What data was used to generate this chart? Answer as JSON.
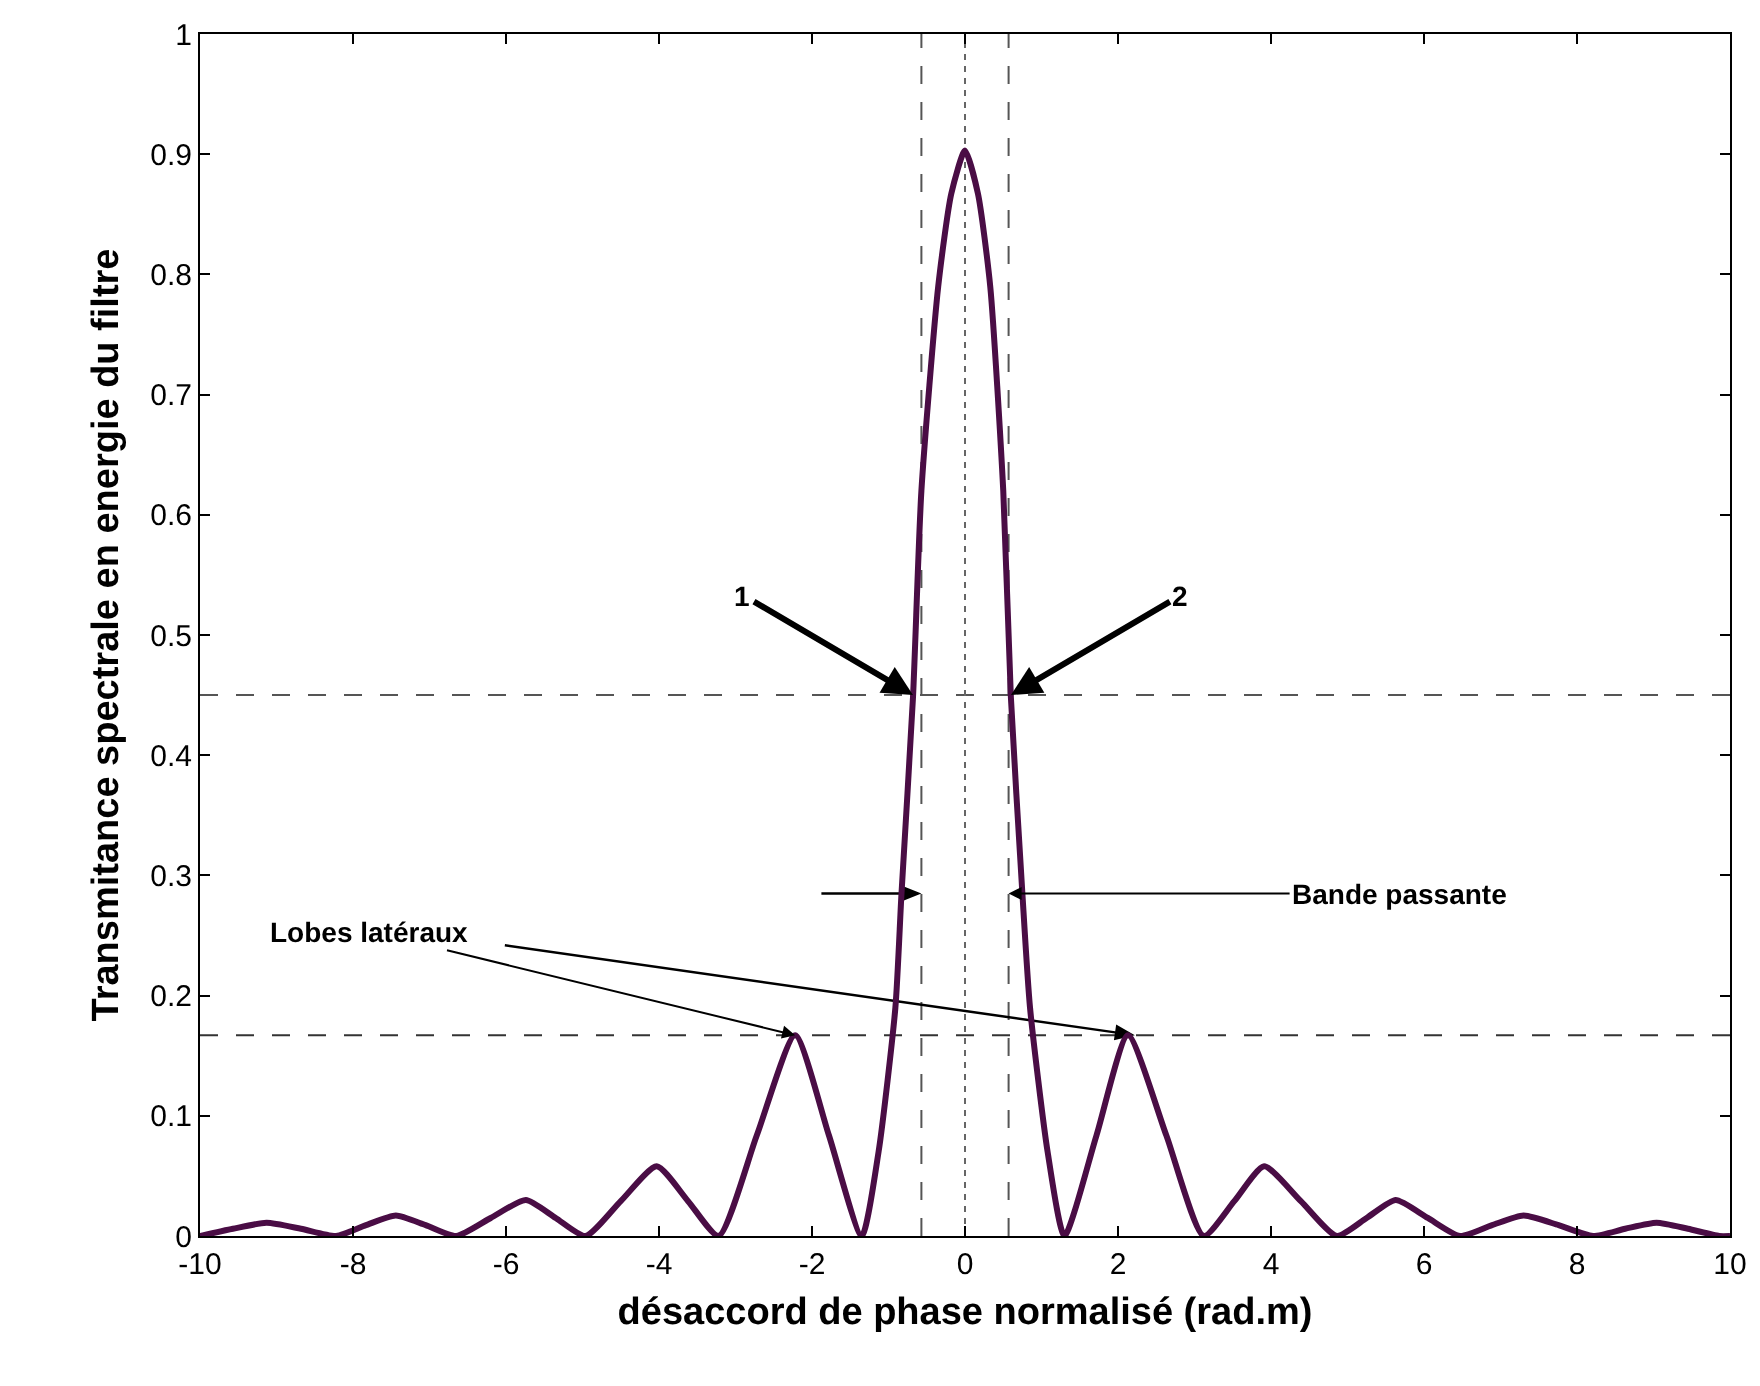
{
  "chart_data": {
    "type": "line",
    "xlabel": "désaccord de phase normalisé (rad.m)",
    "ylabel": "Transmitance spectrale en energie du filtre",
    "x": [
      -10,
      -9.57,
      -9.13,
      -8.68,
      -8.22,
      -7.83,
      -7.44,
      -7.05,
      -6.65,
      -6.2,
      -5.74,
      -5.35,
      -4.96,
      -4.5,
      -4.03,
      -3.62,
      -3.22,
      -2.72,
      -2.22,
      -1.78,
      -1.35,
      -1.13,
      -0.91,
      -0.83,
      -0.68,
      -0.57,
      -0.35,
      -0.18,
      0,
      0.17,
      0.33,
      0.5,
      0.6,
      0.75,
      0.85,
      1.08,
      1.3,
      1.72,
      2.13,
      2.63,
      3.12,
      3.52,
      3.91,
      4.39,
      4.86,
      5.25,
      5.63,
      6.05,
      6.47,
      6.89,
      7.3,
      7.76,
      8.21,
      8.63,
      9.04,
      9.45,
      9.86,
      10
    ],
    "series": [
      {
        "color": "#4a0d45",
        "values": [
          0,
          0.006,
          0.011,
          0.006,
          0,
          0.009,
          0.017,
          0.009,
          0,
          0.015,
          0.03,
          0.015,
          0,
          0.029,
          0.058,
          0.029,
          0,
          0.084,
          0.167,
          0.084,
          0,
          0.07,
          0.19,
          0.285,
          0.448,
          0.62,
          0.79,
          0.867,
          0.903,
          0.867,
          0.79,
          0.62,
          0.448,
          0.285,
          0.19,
          0.07,
          0,
          0.084,
          0.167,
          0.084,
          0,
          0.029,
          0.058,
          0.029,
          0,
          0.015,
          0.03,
          0.015,
          0,
          0.009,
          0.017,
          0.009,
          0,
          0.006,
          0.011,
          0.006,
          0,
          0
        ]
      }
    ],
    "xlim": [
      -10,
      10
    ],
    "ylim": [
      0,
      1
    ],
    "xticks": [
      -10,
      -8,
      -6,
      -4,
      -2,
      0,
      2,
      4,
      6,
      8,
      10
    ],
    "yticks": [
      0,
      0.1,
      0.2,
      0.3,
      0.4,
      0.5,
      0.6,
      0.7,
      0.8,
      0.9,
      1
    ],
    "marker": "none",
    "line_style": "solid",
    "ref_lines": [
      {
        "axis": "y",
        "value": 0.45,
        "color": "#555555",
        "line_style": "dashed"
      },
      {
        "axis": "y",
        "value": 0.167,
        "color": "#333333",
        "line_style": "dashed"
      },
      {
        "axis": "x",
        "value": 0,
        "color": "#666666",
        "line_style": "dotted"
      },
      {
        "axis": "x",
        "value": -0.57,
        "color": "#555555",
        "line_style": "dashed"
      },
      {
        "axis": "x",
        "value": 0.57,
        "color": "#555555",
        "line_style": "dashed"
      }
    ],
    "annotations": [
      {
        "text": "1",
        "x": -0.68,
        "y": 0.45
      },
      {
        "text": "2",
        "x": 0.6,
        "y": 0.45
      },
      {
        "text": "Lobes latéraux",
        "x": -2.22,
        "y": 0.167
      },
      {
        "text": "Bande passante",
        "x": 0.57,
        "y": 0.285
      }
    ]
  }
}
